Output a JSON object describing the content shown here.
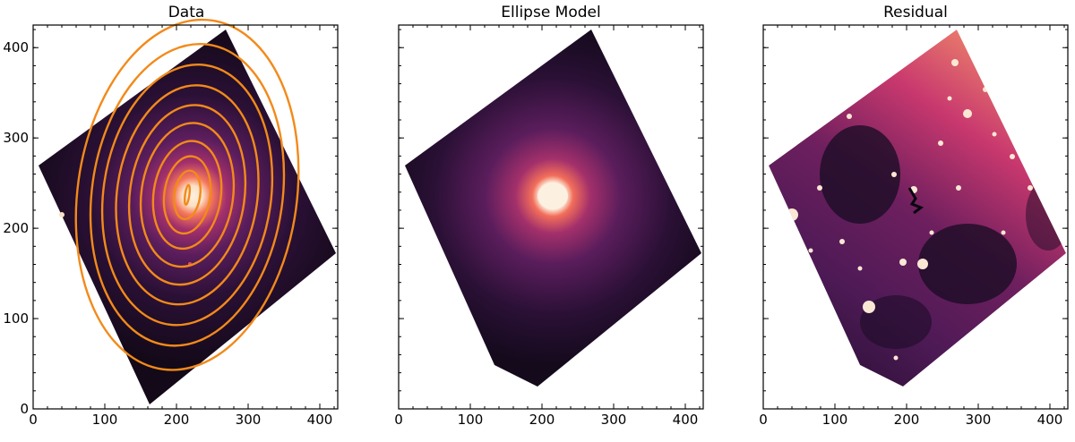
{
  "chart_data": [
    {
      "type": "image",
      "title": "Data",
      "xlim": [
        0,
        425
      ],
      "ylim": [
        0,
        425
      ],
      "xticks": [
        0,
        100,
        200,
        300,
        400
      ],
      "yticks": [
        0,
        100,
        200,
        300,
        400
      ],
      "show_y_tick_labels": true,
      "colormap": "magma",
      "content": "data",
      "center": [
        215,
        237
      ],
      "isophotes": [
        {
          "a": 3,
          "b": 11,
          "pa": 8
        },
        {
          "a": 18,
          "b": 27,
          "pa": 8
        },
        {
          "a": 32,
          "b": 43,
          "pa": 8
        },
        {
          "a": 47,
          "b": 60,
          "pa": 8
        },
        {
          "a": 64,
          "b": 80,
          "pa": 8
        },
        {
          "a": 80,
          "b": 100,
          "pa": 8
        },
        {
          "a": 98,
          "b": 122,
          "pa": 8
        },
        {
          "a": 117,
          "b": 145,
          "pa": 8
        },
        {
          "a": 133,
          "b": 168,
          "pa": 8
        },
        {
          "a": 153,
          "b": 195,
          "pa": 8
        }
      ]
    },
    {
      "type": "image",
      "title": "Ellipse Model",
      "xlim": [
        0,
        425
      ],
      "ylim": [
        0,
        425
      ],
      "xticks": [
        0,
        100,
        200,
        300,
        400
      ],
      "yticks": [
        0,
        100,
        200,
        300,
        400
      ],
      "show_y_tick_labels": false,
      "colormap": "magma",
      "content": "model",
      "center": [
        215,
        237
      ]
    },
    {
      "type": "image",
      "title": "Residual",
      "xlim": [
        0,
        425
      ],
      "ylim": [
        0,
        425
      ],
      "xticks": [
        0,
        100,
        200,
        300,
        400
      ],
      "yticks": [
        0,
        100,
        200,
        300,
        400
      ],
      "show_y_tick_labels": false,
      "colormap": "magma",
      "content": "residual"
    }
  ]
}
